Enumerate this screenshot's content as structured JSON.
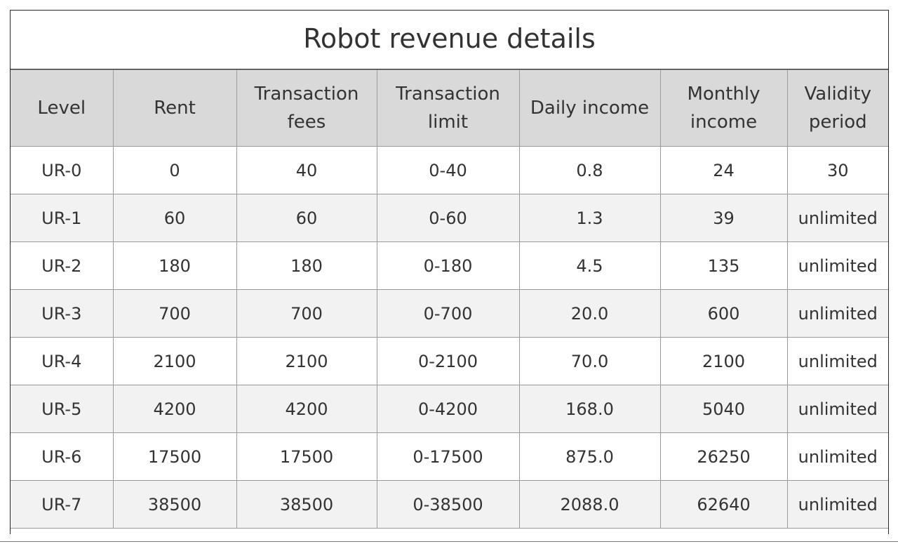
{
  "title": "Robot revenue details",
  "columns": [
    "Level",
    "Rent",
    "Transaction fees",
    "Transaction limit",
    "Daily income",
    "Monthly income",
    "Validity period"
  ],
  "rows": [
    [
      "UR-0",
      "0",
      "40",
      "0-40",
      "0.8",
      "24",
      "30"
    ],
    [
      "UR-1",
      "60",
      "60",
      "0-60",
      "1.3",
      "39",
      "unlimited"
    ],
    [
      "UR-2",
      "180",
      "180",
      "0-180",
      "4.5",
      "135",
      "unlimited"
    ],
    [
      "UR-3",
      "700",
      "700",
      "0-700",
      "20.0",
      "600",
      "unlimited"
    ],
    [
      "UR-4",
      "2100",
      "2100",
      "0-2100",
      "70.0",
      "2100",
      "unlimited"
    ],
    [
      "UR-5",
      "4200",
      "4200",
      "0-4200",
      "168.0",
      "5040",
      "unlimited"
    ],
    [
      "UR-6",
      "17500",
      "17500",
      "0-17500",
      "875.0",
      "26250",
      "unlimited"
    ],
    [
      "UR-7",
      "38500",
      "38500",
      "0-38500",
      "2088.0",
      "62640",
      "unlimited"
    ]
  ],
  "colors": {
    "header_bg": "#d9d9d9",
    "stripe_bg": "#f2f2f2",
    "text": "#333333"
  }
}
